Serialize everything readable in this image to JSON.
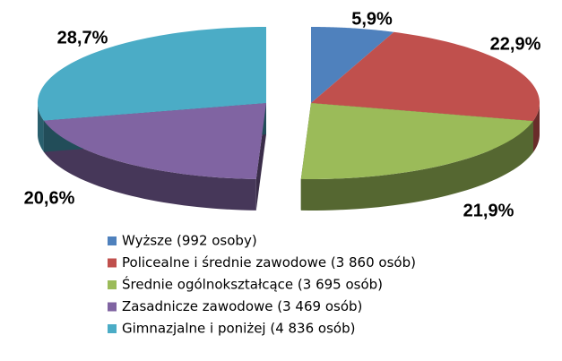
{
  "chart_data": {
    "type": "pie",
    "categories": [
      "Wyższe (992 osoby)",
      "Policealne i średnie zawodowe (3 860 osób)",
      "Średnie ogólnokształcące (3 695 osób)",
      "Zasadnicze zawodowe  (3 469 osób)",
      "Gimnazjalne i poniżej (4 836 osób)"
    ],
    "values": [
      5.9,
      22.9,
      21.9,
      20.6,
      28.7
    ],
    "value_labels": [
      "5,9%",
      "22,9%",
      "21,9%",
      "20,6%",
      "28,7%"
    ],
    "colors": [
      "#4f81bd",
      "#c0504d",
      "#9bbb59",
      "#8064a2",
      "#4bacc6"
    ],
    "legend": "bottom"
  }
}
